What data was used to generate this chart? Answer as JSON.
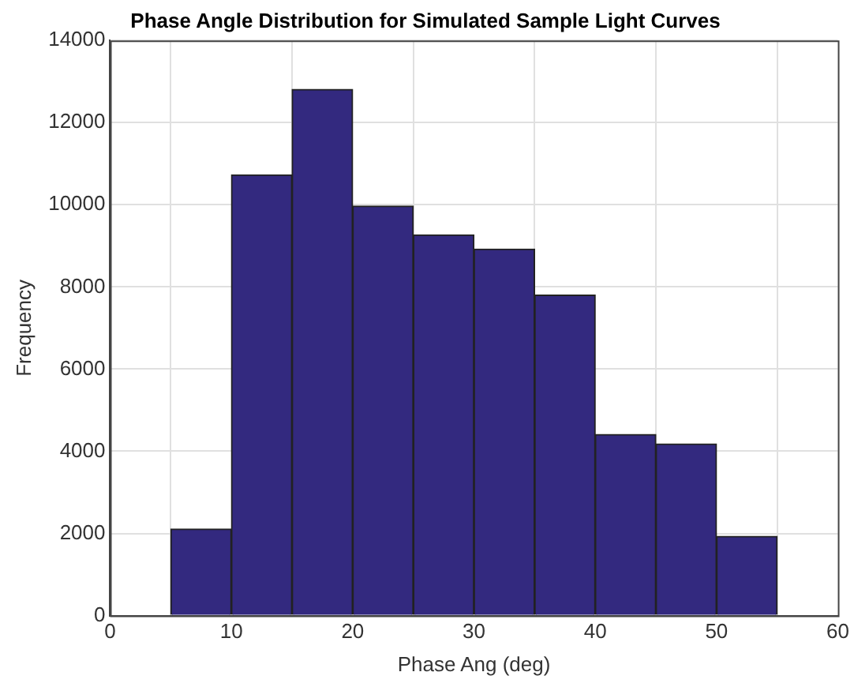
{
  "chart_data": {
    "type": "histogram",
    "title": "Phase Angle Distribution for Simulated Sample Light Curves",
    "xlabel": "Phase Ang (deg)",
    "ylabel": "Frequency",
    "bins": [
      5,
      10,
      15,
      20,
      25,
      30,
      35,
      40,
      45,
      50,
      55
    ],
    "values": [
      2110,
      10730,
      12810,
      9970,
      9270,
      8920,
      7800,
      4410,
      4180,
      1930
    ],
    "color": "#33297f",
    "xlim": [
      0,
      60
    ],
    "xticks": [
      0,
      10,
      20,
      30,
      40,
      50,
      60
    ],
    "ylim": [
      0,
      14000
    ],
    "yticks": [
      0,
      2000,
      4000,
      6000,
      8000,
      10000,
      12000,
      14000
    ],
    "grid": true
  }
}
